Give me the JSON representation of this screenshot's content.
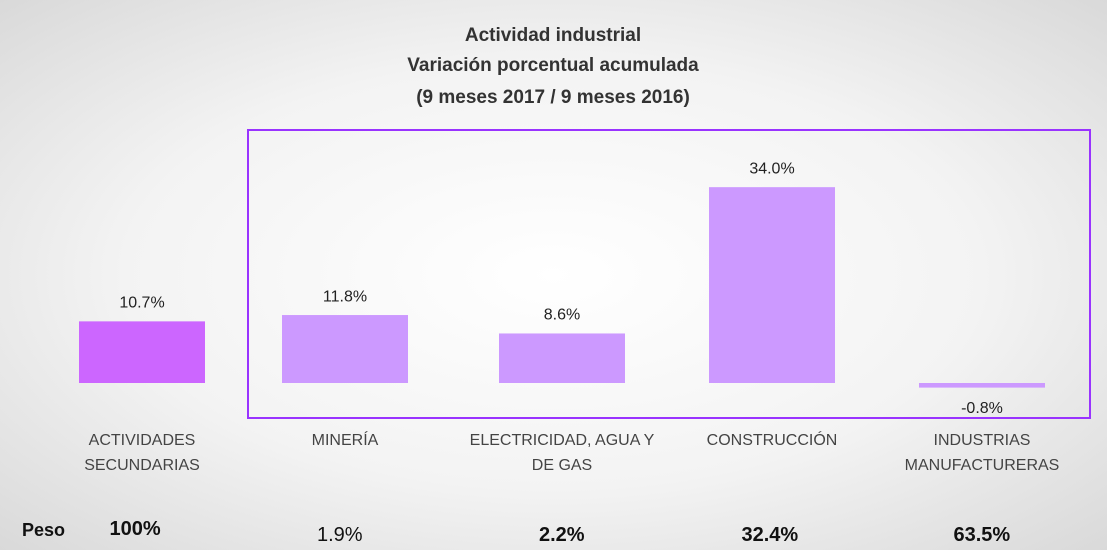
{
  "chart_data": {
    "type": "bar",
    "title": [
      "Actividad industrial",
      "Variación porcentual acumulada",
      "(9 meses 2017 / 9 meses 2016)"
    ],
    "categories": [
      "ACTIVIDADES SECUNDARIAS",
      "MINERÍA",
      "ELECTRICIDAD, AGUA Y DE GAS",
      "CONSTRUCCIÓN",
      "INDUSTRIAS MANUFACTURERAS"
    ],
    "values": [
      10.7,
      11.8,
      8.6,
      34.0,
      -0.8
    ],
    "value_labels": [
      "10.7%",
      "11.8%",
      "8.6%",
      "34.0%",
      "-0.8%"
    ],
    "colors": [
      "#cc66ff",
      "#cc99ff",
      "#cc99ff",
      "#cc99ff",
      "#cc99ff"
    ],
    "weights": {
      "label": "Peso",
      "values": [
        "100%",
        "1.9%",
        "2.2%",
        "32.4%",
        "63.5%"
      ]
    }
  }
}
